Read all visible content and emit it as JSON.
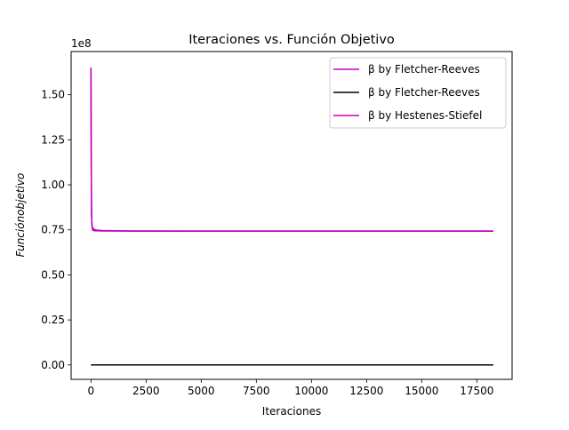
{
  "chart_data": {
    "type": "line",
    "title": "Iteraciones vs. Función Objetivo",
    "xlabel": "Iteraciones",
    "ylabel": "Funciónobjetivo",
    "y_offset_label": "1e8",
    "y_multiplier": 100000000,
    "xlim": [
      -900,
      19100
    ],
    "ylim": [
      -0.08,
      1.74
    ],
    "x_ticks": [
      0,
      2500,
      5000,
      7500,
      10000,
      12500,
      15000,
      17500
    ],
    "y_ticks": [
      0.0,
      0.25,
      0.5,
      0.75,
      1.0,
      1.25,
      1.5
    ],
    "y_tick_labels": [
      "0.00",
      "0.25",
      "0.50",
      "0.75",
      "1.00",
      "1.25",
      "1.50"
    ],
    "legend_position": "top-right",
    "grid": false,
    "series": [
      {
        "name": "β by Fletcher-Reeves",
        "color": "#bf00bf",
        "x": [
          0,
          10,
          25,
          50,
          80,
          120,
          200,
          300,
          500,
          1000,
          2000,
          5000,
          10000,
          15000,
          18250
        ],
        "y": [
          1.65,
          1.2,
          0.85,
          0.77,
          0.76,
          0.755,
          0.75,
          0.748,
          0.746,
          0.745,
          0.744,
          0.743,
          0.743,
          0.743,
          0.743
        ]
      },
      {
        "name": "β by Fletcher-Reeves",
        "color": "#000000",
        "x": [
          0,
          5000,
          10000,
          15000,
          18250
        ],
        "y": [
          0.0,
          0.0,
          0.0,
          0.0,
          0.0
        ]
      },
      {
        "name": "β by Hestenes-Stiefel",
        "color": "#bf00bf",
        "x": [
          0,
          10,
          25,
          50,
          80,
          120,
          200,
          300,
          500,
          1000,
          2000,
          5000,
          10000,
          15000,
          18250
        ],
        "y": [
          1.65,
          1.18,
          0.84,
          0.765,
          0.748,
          0.746,
          0.745,
          0.745,
          0.744,
          0.744,
          0.743,
          0.743,
          0.743,
          0.743,
          0.743
        ]
      }
    ]
  }
}
